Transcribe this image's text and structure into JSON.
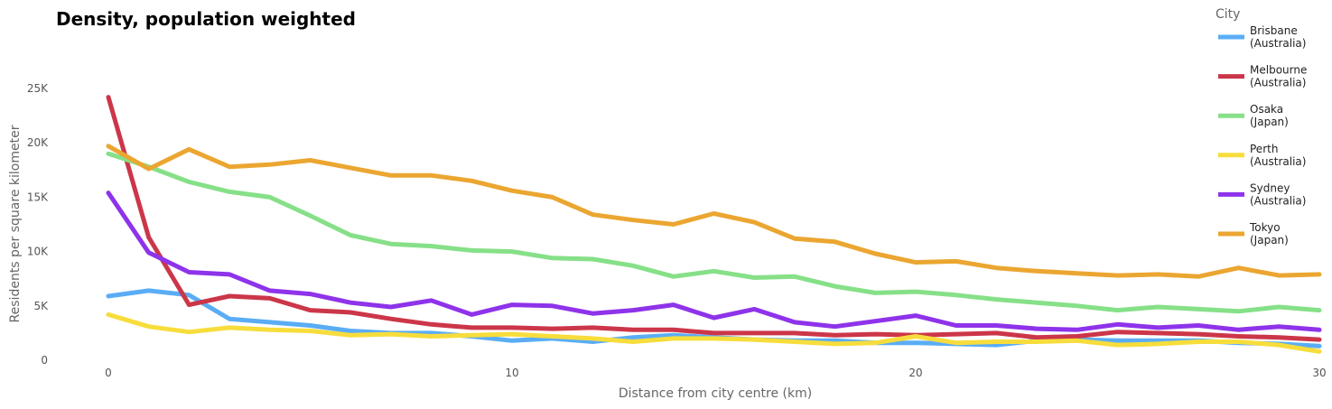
{
  "chart_data": {
    "type": "line",
    "title": "Density, population weighted",
    "xlabel": "Distance from city centre (km)",
    "ylabel": "Residents per square kilometer",
    "xlim": [
      0,
      30
    ],
    "ylim": [
      0,
      25000
    ],
    "x_ticks": [
      0,
      10,
      20,
      30
    ],
    "x_tick_labels": [
      "0",
      "10",
      "20",
      "30"
    ],
    "y_ticks": [
      0,
      5000,
      10000,
      15000,
      20000,
      25000
    ],
    "y_tick_labels": [
      "0",
      "5K",
      "10K",
      "15K",
      "20K",
      "25K"
    ],
    "grid": false,
    "legend": {
      "title": "City",
      "placement": "top-right"
    },
    "x": [
      0,
      1,
      2,
      3,
      4,
      5,
      6,
      7,
      8,
      9,
      10,
      11,
      12,
      13,
      14,
      15,
      16,
      17,
      18,
      19,
      20,
      21,
      22,
      23,
      24,
      25,
      26,
      27,
      28,
      29,
      30
    ],
    "series": [
      {
        "name": "Brisbane (Australia)",
        "label_lines": [
          "Brisbane",
          "(Australia)"
        ],
        "color": "#5aadf5",
        "values": [
          5900,
          6400,
          6000,
          3800,
          3500,
          3200,
          2700,
          2500,
          2500,
          2200,
          1800,
          2000,
          1700,
          2100,
          2300,
          2100,
          1900,
          1800,
          1800,
          1600,
          1600,
          1500,
          1400,
          1800,
          1900,
          1800,
          1800,
          1800,
          1600,
          1500,
          1300
        ]
      },
      {
        "name": "Melbourne (Australia)",
        "label_lines": [
          "Melbourne",
          "(Australia)"
        ],
        "color": "#cc3649",
        "values": [
          24200,
          11300,
          5100,
          5900,
          5700,
          4600,
          4400,
          3800,
          3300,
          3000,
          3000,
          2900,
          3000,
          2800,
          2800,
          2500,
          2500,
          2500,
          2300,
          2400,
          2300,
          2400,
          2500,
          2100,
          2200,
          2600,
          2500,
          2400,
          2200,
          2100,
          1900
        ]
      },
      {
        "name": "Osaka (Japan)",
        "label_lines": [
          "Osaka",
          "(Japan)"
        ],
        "color": "#86e088",
        "values": [
          19000,
          17800,
          16400,
          15500,
          15000,
          13300,
          11500,
          10700,
          10500,
          10100,
          10000,
          9400,
          9300,
          8700,
          7700,
          8200,
          7600,
          7700,
          6800,
          6200,
          6300,
          6000,
          5600,
          5300,
          5000,
          4600,
          4900,
          4700,
          4500,
          4900,
          4600
        ]
      },
      {
        "name": "Perth (Australia)",
        "label_lines": [
          "Perth",
          "(Australia)"
        ],
        "color": "#f7dd3c",
        "values": [
          4200,
          3100,
          2600,
          3000,
          2800,
          2700,
          2300,
          2400,
          2200,
          2300,
          2400,
          2200,
          2000,
          1700,
          2000,
          2000,
          1900,
          1700,
          1500,
          1600,
          2200,
          1600,
          1700,
          1700,
          1800,
          1400,
          1500,
          1700,
          1700,
          1400,
          800
        ]
      },
      {
        "name": "Sydney (Australia)",
        "label_lines": [
          "Sydney",
          "(Australia)"
        ],
        "color": "#8e33ea",
        "values": [
          15400,
          9900,
          8100,
          7900,
          6400,
          6100,
          5300,
          4900,
          5500,
          4200,
          5100,
          5000,
          4300,
          4600,
          5100,
          3900,
          4700,
          3500,
          3100,
          3600,
          4100,
          3200,
          3200,
          2900,
          2800,
          3300,
          3000,
          3200,
          2800,
          3100,
          2800
        ]
      },
      {
        "name": "Tokyo (Japan)",
        "label_lines": [
          "Tokyo",
          "(Japan)"
        ],
        "color": "#eba631",
        "values": [
          19700,
          17600,
          19400,
          17800,
          18000,
          18400,
          17700,
          17000,
          17000,
          16500,
          15600,
          15000,
          13400,
          12900,
          12500,
          13500,
          12700,
          11200,
          10900,
          9800,
          9000,
          9100,
          8500,
          8200,
          8000,
          7800,
          7900,
          7700,
          8500,
          7800,
          7900
        ]
      }
    ]
  }
}
